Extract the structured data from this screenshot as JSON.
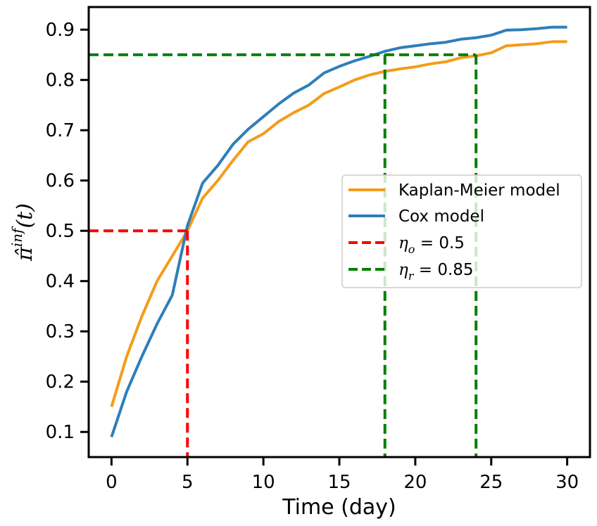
{
  "chart_data": {
    "type": "line",
    "xlabel": "Time (day)",
    "ylabel": "π̂inf(t)",
    "xlim": [
      -1.5,
      31.5
    ],
    "ylim": [
      0.05,
      0.945
    ],
    "x_ticks": [
      0,
      5,
      10,
      15,
      20,
      25,
      30
    ],
    "x_tick_labels": [
      "0",
      "5",
      "10",
      "15",
      "20",
      "25",
      "30"
    ],
    "y_ticks": [
      0.1,
      0.2,
      0.3,
      0.4,
      0.5,
      0.6,
      0.7,
      0.8,
      0.9
    ],
    "y_tick_labels": [
      "0.1",
      "0.2",
      "0.3",
      "0.4",
      "0.5",
      "0.6",
      "0.7",
      "0.8",
      "0.9"
    ],
    "grid": false,
    "legend_position": "center-right",
    "series": [
      {
        "name": "Kaplan-Meier model",
        "color": "#f39c1b",
        "x": [
          0,
          1,
          2,
          3,
          4,
          5,
          6,
          7,
          8,
          9,
          10,
          11,
          12,
          13,
          14,
          15,
          16,
          17,
          18,
          19,
          20,
          21,
          22,
          23,
          24,
          25,
          26,
          27,
          28,
          29,
          30
        ],
        "y": [
          0.15,
          0.25,
          0.33,
          0.4,
          0.45,
          0.5,
          0.565,
          0.6,
          0.64,
          0.677,
          0.693,
          0.717,
          0.735,
          0.75,
          0.773,
          0.786,
          0.8,
          0.81,
          0.817,
          0.822,
          0.826,
          0.832,
          0.836,
          0.844,
          0.848,
          0.854,
          0.868,
          0.87,
          0.872,
          0.876,
          0.876
        ]
      },
      {
        "name": "Cox model",
        "color": "#2e7fb8",
        "x": [
          0,
          1,
          2,
          3,
          4,
          5,
          6,
          7,
          8,
          9,
          10,
          11,
          12,
          13,
          14,
          15,
          16,
          17,
          18,
          19,
          20,
          21,
          22,
          23,
          24,
          25,
          26,
          27,
          28,
          29,
          30
        ],
        "y": [
          0.09,
          0.18,
          0.25,
          0.315,
          0.372,
          0.51,
          0.595,
          0.63,
          0.672,
          0.702,
          0.727,
          0.752,
          0.774,
          0.79,
          0.814,
          0.827,
          0.838,
          0.847,
          0.857,
          0.864,
          0.868,
          0.872,
          0.875,
          0.881,
          0.884,
          0.889,
          0.899,
          0.9,
          0.902,
          0.905,
          0.905
        ]
      }
    ],
    "threshold_lines": [
      {
        "name": "ηo = 0.5",
        "legend_symbol": "η",
        "legend_subscript": "o",
        "legend_value": " = 0.5",
        "color": "#ff0000",
        "y": 0.5,
        "x_end": 5,
        "vertical_x": [
          5
        ]
      },
      {
        "name": "ηr = 0.85",
        "legend_symbol": "η",
        "legend_subscript": "r",
        "legend_value": " = 0.85",
        "color": "#008000",
        "y": 0.85,
        "x_end": 24,
        "vertical_x": [
          18,
          24
        ]
      }
    ],
    "ylabel_parts": {
      "base": "π̂",
      "superscript": "inf",
      "suffix": "(t)"
    }
  }
}
